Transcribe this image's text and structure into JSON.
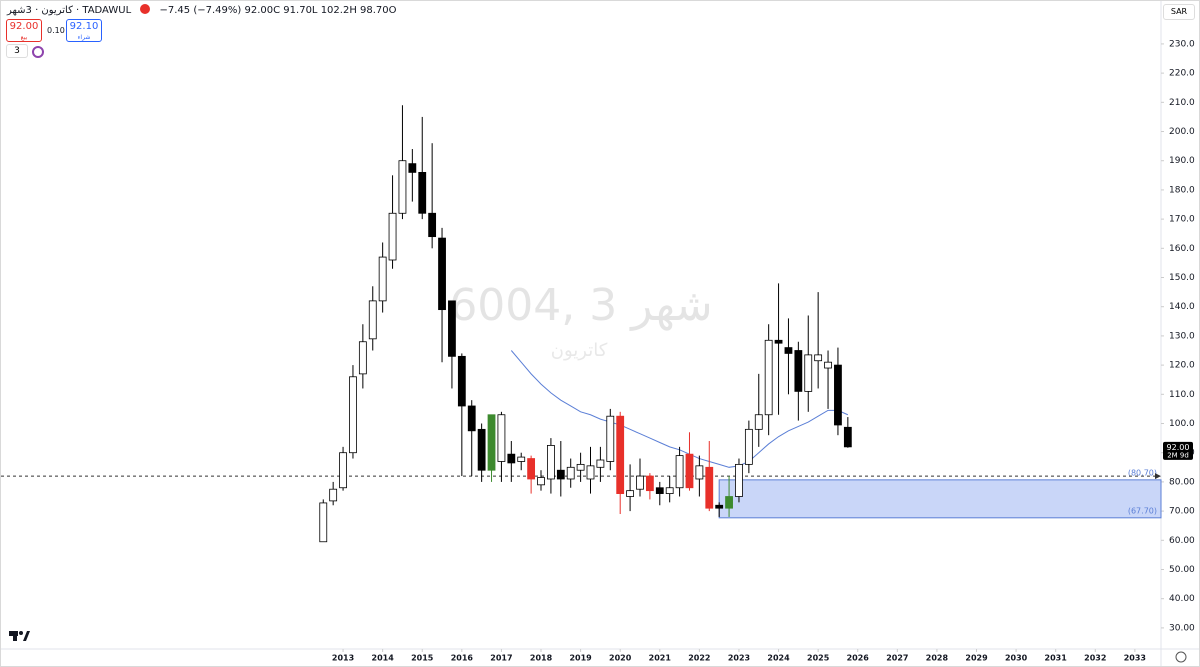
{
  "toolbar": {
    "symbol": "كاتريون · 3شهر · TADAWUL",
    "change": "−7.45 (−7.49%)",
    "close": "92.00C",
    "low": "91.70L",
    "high": "102.2H",
    "open": "98.70O",
    "sell_price": "92.00",
    "sell_label": "بيع",
    "spread": "0.10",
    "buy_price": "92.10",
    "buy_label": "شراء",
    "indicator_count": "3",
    "currency": "SAR"
  },
  "chart_data": {
    "type": "candlestick",
    "watermark": "6004, 3 شهر",
    "watermark_subtitle": "كاتريون",
    "x": [
      2012.5,
      2012.75,
      2013,
      2013.25,
      2013.5,
      2013.75,
      2014,
      2014.25,
      2014.5,
      2014.75,
      2015,
      2015.25,
      2015.5,
      2015.75,
      2016,
      2016.25,
      2016.5,
      2016.75,
      2017,
      2017.25,
      2017.5,
      2017.75,
      2018,
      2018.25,
      2018.5,
      2018.75,
      2019,
      2019.25,
      2019.5,
      2019.75,
      2020,
      2020.25,
      2020.5,
      2020.75,
      2021,
      2021.25,
      2021.5,
      2021.75,
      2022,
      2022.25,
      2022.5,
      2022.75,
      2023,
      2023.25,
      2023.5,
      2023.75,
      2024,
      2024.25,
      2024.5,
      2024.75,
      2025,
      2025.25,
      2025.5,
      2025.75
    ],
    "open": [
      59.5,
      73.5,
      78,
      90,
      117,
      129,
      142,
      156,
      172,
      189,
      186,
      172,
      163.5,
      142,
      123,
      106,
      98,
      84,
      87,
      89.5,
      87,
      88,
      79,
      81,
      84,
      81,
      84,
      81,
      85,
      87,
      102.5,
      75,
      77.5,
      82,
      78,
      76,
      78,
      89.5,
      81,
      85,
      72,
      71,
      75,
      86,
      98,
      103,
      128.5,
      126,
      125,
      111,
      121.5,
      119,
      120,
      98.7
    ],
    "high": [
      74,
      80,
      92,
      120,
      134,
      147,
      162,
      185,
      209,
      194,
      205,
      196,
      167,
      142,
      124,
      108,
      100,
      103,
      104,
      94,
      90,
      89,
      84,
      95,
      94,
      88,
      90,
      92,
      92,
      105,
      104,
      86,
      88,
      83,
      80,
      82,
      92,
      97,
      89,
      94,
      73,
      82,
      88,
      101,
      117,
      134,
      148,
      136,
      128,
      137,
      145,
      125,
      126,
      102.2
    ],
    "low": [
      59.5,
      72,
      77,
      88,
      112,
      125,
      138,
      153,
      170,
      176,
      170,
      160,
      121,
      112,
      82,
      82,
      80,
      80,
      80,
      80,
      84,
      76,
      77,
      76,
      75,
      78,
      80,
      76,
      80,
      84,
      69,
      70,
      75,
      74,
      72,
      73,
      75,
      77,
      75,
      70,
      68,
      68,
      73,
      83,
      92,
      96,
      103,
      110,
      101,
      104,
      112,
      105,
      96,
      91.7
    ],
    "close": [
      72.8,
      77.5,
      90,
      116,
      128,
      142,
      157,
      172,
      190,
      186,
      172,
      164,
      139,
      123,
      106,
      97.5,
      84,
      103,
      103,
      86.5,
      88.5,
      81,
      81.5,
      92.5,
      81,
      85,
      86,
      85.5,
      87.5,
      102.5,
      76,
      77,
      82,
      77,
      76,
      78,
      89,
      78,
      85.5,
      71,
      71,
      75,
      86,
      98,
      103,
      128.5,
      127.5,
      124,
      111,
      123.5,
      123.5,
      121,
      99.5,
      92
    ],
    "colors": [
      "#ffffff",
      "#ffffff",
      "#ffffff",
      "#ffffff",
      "#ffffff",
      "#ffffff",
      "#ffffff",
      "#ffffff",
      "#ffffff",
      "#000000",
      "#000000",
      "#000000",
      "#000000",
      "#000000",
      "#000000",
      "#000000",
      "#000000",
      "#3d8a2e",
      "#ffffff",
      "#000000",
      "#ffffff",
      "#e8302a",
      "#ffffff",
      "#ffffff",
      "#000000",
      "#ffffff",
      "#ffffff",
      "#ffffff",
      "#ffffff",
      "#ffffff",
      "#e8302a",
      "#ffffff",
      "#ffffff",
      "#e8302a",
      "#000000",
      "#ffffff",
      "#ffffff",
      "#e8302a",
      "#ffffff",
      "#e8302a",
      "#000000",
      "#3d8a2e",
      "#ffffff",
      "#ffffff",
      "#ffffff",
      "#ffffff",
      "#000000",
      "#000000",
      "#000000",
      "#ffffff",
      "#ffffff",
      "#ffffff",
      "#000000",
      "#000000"
    ],
    "moving_average": {
      "color": "#5b7fd6",
      "values": [
        null,
        null,
        null,
        null,
        null,
        null,
        null,
        null,
        null,
        null,
        null,
        null,
        null,
        null,
        null,
        null,
        null,
        null,
        null,
        125,
        121,
        117,
        113.5,
        110.5,
        108,
        106,
        104,
        103,
        101.5,
        100.5,
        99.5,
        98,
        96.5,
        95,
        93.5,
        92,
        91,
        89.5,
        88,
        87,
        86,
        85,
        85.5,
        87,
        90,
        93,
        95.5,
        97.5,
        99,
        100.5,
        102.5,
        104.5,
        104.5,
        103
      ]
    },
    "zone": {
      "x_start": 2022.5,
      "values": [
        80.7,
        67.7
      ],
      "value_labels": [
        "(80.70)",
        "(67.70)"
      ],
      "color": "#b7c8f5"
    },
    "dashed_line": 82,
    "last_price": {
      "value": 92,
      "label": "92.00",
      "countdown": "2M 9d"
    },
    "xlim": [
      2004.36,
      2033.66
    ],
    "xticks": [
      2013,
      2014,
      2015,
      2016,
      2017,
      2018,
      2019,
      2020,
      2021,
      2022,
      2023,
      2024,
      2025,
      2026,
      2027,
      2028,
      2029,
      2030,
      2031,
      2032,
      2033
    ],
    "ylim": [
      23.8,
      244.7
    ],
    "yticks": [
      {
        "value": 30,
        "label": "30.00"
      },
      {
        "value": 40,
        "label": "40.00"
      },
      {
        "value": 50,
        "label": "50.00"
      },
      {
        "value": 60,
        "label": "60.00"
      },
      {
        "value": 70,
        "label": "70.00"
      },
      {
        "value": 80,
        "label": "80.00"
      },
      {
        "value": 90,
        "label": "90.00"
      },
      {
        "value": 100,
        "label": "100.0"
      },
      {
        "value": 110,
        "label": "110.0"
      },
      {
        "value": 120,
        "label": "120.0"
      },
      {
        "value": 130,
        "label": "130.0"
      },
      {
        "value": 140,
        "label": "140.0"
      },
      {
        "value": 150,
        "label": "150.0"
      },
      {
        "value": 160,
        "label": "160.0"
      },
      {
        "value": 170,
        "label": "170.0"
      },
      {
        "value": 180,
        "label": "180.0"
      },
      {
        "value": 190,
        "label": "190.0"
      },
      {
        "value": 200,
        "label": "200.0"
      },
      {
        "value": 210,
        "label": "210.0"
      },
      {
        "value": 220,
        "label": "220.0"
      },
      {
        "value": 230,
        "label": "230.0"
      }
    ]
  }
}
